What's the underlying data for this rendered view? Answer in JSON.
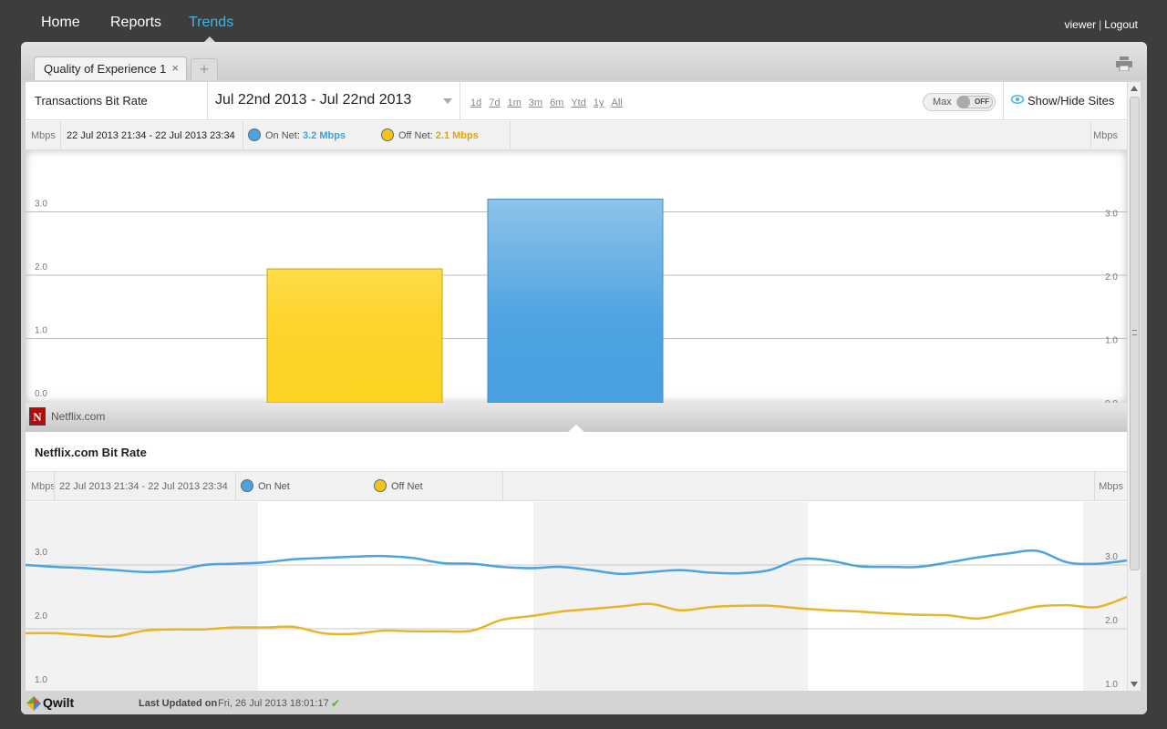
{
  "nav": {
    "items": [
      {
        "label": "Home",
        "active": false
      },
      {
        "label": "Reports",
        "active": false
      },
      {
        "label": "Trends",
        "active": true
      }
    ],
    "user": "viewer",
    "logout": "Logout"
  },
  "tabs": {
    "items": [
      {
        "label": "Quality of Experience 1",
        "close": "×"
      }
    ],
    "add": "+"
  },
  "toolbar": {
    "report_title": "Transactions Bit Rate",
    "date_range": "Jul 22nd 2013 - Jul 22nd 2013",
    "ranges": [
      "1d",
      "7d",
      "1m",
      "3m",
      "6m",
      "Ytd",
      "1y",
      "All"
    ],
    "max_label": "Max",
    "max_state": "OFF",
    "show_hide_label": "Show/Hide Sites"
  },
  "top_legend": {
    "unit_left": "Mbps",
    "unit_right": "Mbps",
    "range": "22 Jul 2013 21:34 - 22 Jul 2013 23:34",
    "on_net_label": "On Net:",
    "on_net_value": "3.2 Mbps",
    "off_net_label": "Off Net:",
    "off_net_value": "2.1 Mbps"
  },
  "site": {
    "name": "Netflix.com",
    "logo_letter": "N",
    "section_title": "Netflix.com Bit Rate"
  },
  "bottom_legend": {
    "unit_left": "Mbps",
    "unit_right": "Mbps",
    "range": "22 Jul 2013 21:34 - 22 Jul 2013 23:34",
    "on_net_label": "On Net",
    "off_net_label": "Off Net"
  },
  "colors": {
    "on_net": "#4ca3df",
    "off_net": "#f5c518",
    "nav_active": "#3fb6e8",
    "on_net_text": "#3aa3dc",
    "off_net_text": "#e0a800"
  },
  "chart_data": [
    {
      "type": "bar",
      "unit": "Mbps",
      "categories": [
        "Off Net",
        "On Net"
      ],
      "values": [
        2.1,
        3.2
      ],
      "colors": [
        "#f5c518",
        "#4ca3df"
      ],
      "ylim": [
        0,
        3.5
      ],
      "yticks": [
        "0.0",
        "1.0",
        "2.0",
        "3.0"
      ],
      "grid": true
    },
    {
      "type": "line",
      "unit": "Mbps",
      "ylim": [
        0.8,
        3.5
      ],
      "yticks": [
        "1.0",
        "2.0",
        "3.0"
      ],
      "series": [
        {
          "name": "On Net",
          "color": "#4ca3df",
          "values": [
            3.0,
            2.97,
            2.95,
            2.92,
            2.89,
            2.91,
            3.0,
            3.02,
            3.04,
            3.09,
            3.11,
            3.13,
            3.14,
            3.11,
            3.03,
            3.02,
            2.97,
            2.95,
            2.97,
            2.92,
            2.86,
            2.89,
            2.92,
            2.88,
            2.87,
            2.92,
            3.09,
            3.07,
            2.98,
            2.97,
            2.97,
            3.04,
            3.12,
            3.18,
            3.22,
            3.04,
            3.02,
            3.07
          ]
        },
        {
          "name": "Off Net",
          "color": "#e8b528",
          "values": [
            1.93,
            1.93,
            1.9,
            1.88,
            1.97,
            1.99,
            1.99,
            2.02,
            2.02,
            2.03,
            1.93,
            1.92,
            1.97,
            1.96,
            1.96,
            1.97,
            2.14,
            2.2,
            2.27,
            2.31,
            2.35,
            2.39,
            2.29,
            2.34,
            2.36,
            2.36,
            2.32,
            2.29,
            2.27,
            2.24,
            2.22,
            2.21,
            2.16,
            2.25,
            2.35,
            2.37,
            2.34,
            2.5
          ]
        }
      ]
    }
  ],
  "footer": {
    "brand": "Qwilt",
    "last_updated_label": "Last Updated on",
    "last_updated_value": "Fri, 26 Jul 2013 18:01:17"
  }
}
